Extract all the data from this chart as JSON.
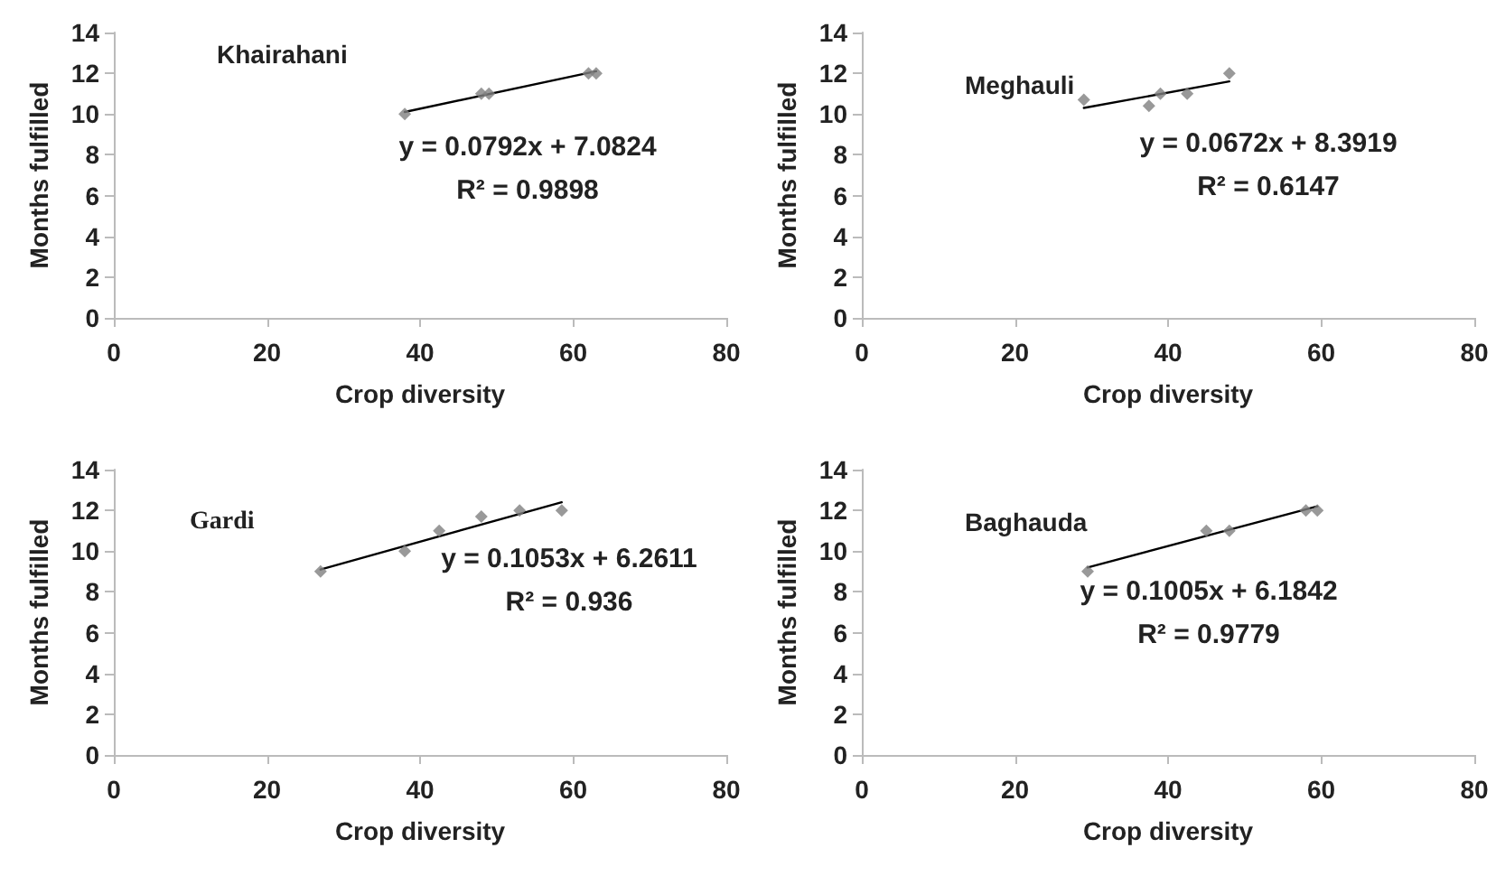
{
  "chart_data": [
    {
      "type": "scatter",
      "title": "Khairahani",
      "xlabel": "Crop diversity",
      "ylabel": "Months fulfilled",
      "marker": "diamond",
      "grid": false,
      "xlim": [
        0,
        80
      ],
      "xticks": [
        0,
        20,
        40,
        60,
        80
      ],
      "ylim": [
        0,
        14
      ],
      "yticks": [
        0,
        2,
        4,
        6,
        8,
        10,
        12,
        14
      ],
      "annotations": [
        "y = 0.0792x + 7.0824",
        "R² = 0.9898"
      ],
      "series": [
        {
          "color": "#7f7f7f",
          "x": [
            38,
            48,
            49,
            62,
            63
          ],
          "values": [
            10,
            11,
            11,
            12,
            12
          ]
        },
        {
          "type": "line",
          "color": "#000000",
          "marker": "none",
          "x": [
            38,
            63
          ],
          "values": [
            10.1,
            12.1
          ]
        }
      ]
    },
    {
      "type": "scatter",
      "title": "Meghauli",
      "xlabel": "Crop diversity",
      "ylabel": "Months fulfilled",
      "marker": "diamond",
      "grid": false,
      "xlim": [
        0,
        80
      ],
      "xticks": [
        0,
        20,
        40,
        60,
        80
      ],
      "ylim": [
        0,
        14
      ],
      "yticks": [
        0,
        2,
        4,
        6,
        8,
        10,
        12,
        14
      ],
      "annotations": [
        "y = 0.0672x + 8.3919",
        "R² = 0.6147"
      ],
      "series": [
        {
          "color": "#7f7f7f",
          "x": [
            29,
            37.5,
            39,
            42.5,
            48
          ],
          "values": [
            10.7,
            10.4,
            11,
            11,
            12
          ]
        },
        {
          "type": "line",
          "color": "#000000",
          "marker": "none",
          "x": [
            29,
            48
          ],
          "values": [
            10.3,
            11.6
          ]
        }
      ]
    },
    {
      "type": "scatter",
      "title": "Gardi",
      "xlabel": "Crop diversity",
      "ylabel": "Months fulfilled",
      "marker": "diamond",
      "grid": false,
      "xlim": [
        0,
        80
      ],
      "xticks": [
        0,
        20,
        40,
        60,
        80
      ],
      "ylim": [
        0,
        14
      ],
      "yticks": [
        0,
        2,
        4,
        6,
        8,
        10,
        12,
        14
      ],
      "annotations": [
        "y = 0.1053x + 6.2611",
        "R² = 0.936"
      ],
      "series": [
        {
          "color": "#7f7f7f",
          "x": [
            27,
            38,
            42.5,
            48,
            53,
            58.5
          ],
          "values": [
            9,
            10,
            11,
            11.7,
            12,
            12
          ]
        },
        {
          "type": "line",
          "color": "#000000",
          "marker": "none",
          "x": [
            27,
            58.5
          ],
          "values": [
            9.1,
            12.4
          ]
        }
      ]
    },
    {
      "type": "scatter",
      "title": "Baghauda",
      "xlabel": "Crop diversity",
      "ylabel": "Months fulfilled",
      "marker": "diamond",
      "grid": false,
      "xlim": [
        0,
        80
      ],
      "xticks": [
        0,
        20,
        40,
        60,
        80
      ],
      "ylim": [
        0,
        14
      ],
      "yticks": [
        0,
        2,
        4,
        6,
        8,
        10,
        12,
        14
      ],
      "annotations": [
        "y = 0.1005x + 6.1842",
        "R² = 0.9779"
      ],
      "series": [
        {
          "color": "#7f7f7f",
          "x": [
            29.5,
            45,
            48,
            58,
            59.5
          ],
          "values": [
            9,
            11,
            11,
            12,
            12
          ]
        },
        {
          "type": "line",
          "color": "#000000",
          "marker": "none",
          "x": [
            29.5,
            59.5
          ],
          "values": [
            9.2,
            12.2
          ]
        }
      ]
    }
  ]
}
